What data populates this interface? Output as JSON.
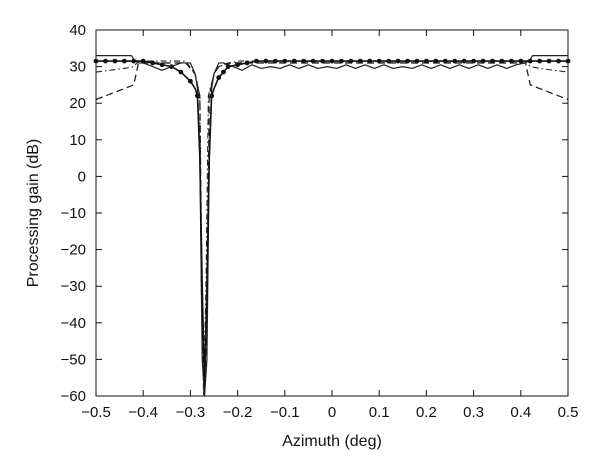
{
  "chart_data": {
    "type": "line",
    "title": "",
    "xlabel": "Azimuth (deg)",
    "ylabel": "Processing gain (dB)",
    "xlim": [
      -0.5,
      0.5
    ],
    "ylim": [
      -60,
      40
    ],
    "xticks": [
      -0.5,
      -0.4,
      -0.3,
      -0.2,
      -0.1,
      0,
      0.1,
      0.2,
      0.3,
      0.4,
      0.5
    ],
    "xtick_labels": [
      "−0.5",
      "−0.4",
      "−0.3",
      "−0.2",
      "−0.1",
      "0",
      "0.1",
      "0.2",
      "0.3",
      "0.4",
      "0.5"
    ],
    "yticks": [
      -60,
      -50,
      -40,
      -30,
      -20,
      -10,
      0,
      10,
      20,
      30,
      40
    ],
    "ytick_labels": [
      "−60",
      "−50",
      "−40",
      "−30",
      "−20",
      "−10",
      "0",
      "10",
      "20",
      "30",
      "40"
    ],
    "grid": false,
    "legend": "none",
    "series": [
      {
        "style": "solid-thin",
        "x": [
          -0.5,
          -0.425,
          -0.42,
          -0.41,
          -0.4,
          -0.38,
          -0.36,
          -0.34,
          -0.32,
          -0.3,
          -0.29,
          -0.285,
          -0.28,
          -0.275,
          -0.27,
          -0.265,
          -0.26,
          -0.255,
          -0.25,
          -0.24,
          -0.23,
          -0.21,
          -0.19,
          -0.17,
          -0.15,
          -0.13,
          -0.11,
          -0.09,
          -0.07,
          -0.05,
          -0.03,
          -0.01,
          0.01,
          0.03,
          0.05,
          0.07,
          0.09,
          0.11,
          0.13,
          0.15,
          0.17,
          0.19,
          0.21,
          0.23,
          0.25,
          0.27,
          0.29,
          0.31,
          0.33,
          0.35,
          0.37,
          0.39,
          0.41,
          0.42,
          0.425,
          0.5
        ],
        "y": [
          33,
          33,
          32,
          31,
          31,
          30,
          29,
          30,
          31,
          31,
          28,
          24,
          5,
          -50,
          -60,
          -50,
          5,
          24,
          28,
          31,
          31,
          30,
          29,
          30.5,
          29.5,
          30,
          29.5,
          30.5,
          29.5,
          30.5,
          29.5,
          30,
          29.5,
          30.5,
          29.5,
          30.5,
          29.5,
          30.5,
          29.5,
          30,
          29.5,
          30.5,
          29.5,
          30.5,
          29.5,
          30.5,
          29.5,
          30.5,
          29.5,
          30.5,
          29.5,
          30.5,
          31,
          32,
          33,
          33
        ]
      },
      {
        "style": "dashed",
        "x": [
          -0.5,
          -0.44,
          -0.42,
          -0.41,
          -0.39,
          -0.35,
          -0.31,
          -0.29,
          -0.28,
          -0.275,
          -0.27,
          -0.265,
          -0.26,
          -0.25,
          -0.24,
          -0.22,
          -0.2,
          -0.15,
          -0.1,
          0,
          0.1,
          0.2,
          0.3,
          0.39,
          0.41,
          0.42,
          0.44,
          0.5
        ],
        "y": [
          21,
          24,
          25,
          31,
          31,
          31,
          31,
          28,
          22,
          -40,
          -58,
          -40,
          22,
          28,
          30,
          31,
          31,
          31,
          31,
          31,
          31,
          31,
          31,
          31,
          31,
          25,
          24,
          21
        ]
      },
      {
        "style": "dash-dot",
        "x": [
          -0.5,
          -0.44,
          -0.42,
          -0.41,
          -0.39,
          -0.35,
          -0.31,
          -0.29,
          -0.28,
          -0.277,
          -0.272,
          -0.267,
          -0.262,
          -0.25,
          -0.24,
          -0.2,
          -0.1,
          0,
          0.1,
          0.2,
          0.3,
          0.39,
          0.41,
          0.42,
          0.44,
          0.5
        ],
        "y": [
          28.5,
          29.5,
          30,
          31.5,
          31.5,
          31.5,
          31.5,
          28,
          22,
          -30,
          -60,
          -30,
          22,
          28,
          30,
          31.5,
          31.5,
          31.5,
          31.5,
          31.5,
          31.5,
          31.5,
          31.5,
          30,
          29.5,
          28.5
        ]
      },
      {
        "style": "solid-with-dots",
        "x": [
          -0.5,
          -0.48,
          -0.46,
          -0.44,
          -0.42,
          -0.4,
          -0.38,
          -0.36,
          -0.34,
          -0.32,
          -0.3,
          -0.29,
          -0.285,
          -0.28,
          -0.275,
          -0.27,
          -0.265,
          -0.26,
          -0.255,
          -0.25,
          -0.24,
          -0.23,
          -0.22,
          -0.2,
          -0.18,
          -0.16,
          -0.14,
          -0.12,
          -0.1,
          -0.08,
          -0.06,
          -0.04,
          -0.02,
          0,
          0.02,
          0.04,
          0.06,
          0.08,
          0.1,
          0.12,
          0.14,
          0.16,
          0.18,
          0.2,
          0.22,
          0.24,
          0.26,
          0.28,
          0.3,
          0.32,
          0.34,
          0.36,
          0.38,
          0.4,
          0.42,
          0.44,
          0.46,
          0.48,
          0.5
        ],
        "y": [
          31.5,
          31.5,
          31.5,
          31.5,
          31.5,
          31.5,
          31,
          30.5,
          30,
          28.5,
          26,
          24,
          22,
          5,
          -30,
          -57,
          -30,
          5,
          22,
          24,
          27,
          28.5,
          30,
          30.5,
          31,
          31.5,
          31.5,
          31.5,
          31.5,
          31.5,
          31.5,
          31.5,
          31.5,
          31.5,
          31.5,
          31.5,
          31.5,
          31.5,
          31.5,
          31.5,
          31.5,
          31.5,
          31.5,
          31.5,
          31.5,
          31.5,
          31.5,
          31.5,
          31.5,
          31.5,
          31.5,
          31.5,
          31.5,
          31.5,
          31.5,
          31.5,
          31.5,
          31.5,
          31.5
        ],
        "markers_x": [
          -0.5,
          -0.48,
          -0.46,
          -0.44,
          -0.42,
          -0.4,
          -0.38,
          -0.36,
          -0.34,
          -0.32,
          -0.3,
          -0.285,
          -0.255,
          -0.24,
          -0.23,
          -0.22,
          -0.2,
          -0.18,
          -0.16,
          -0.14,
          -0.12,
          -0.1,
          -0.08,
          -0.06,
          -0.04,
          -0.02,
          0,
          0.02,
          0.04,
          0.06,
          0.08,
          0.1,
          0.12,
          0.14,
          0.16,
          0.18,
          0.2,
          0.22,
          0.24,
          0.26,
          0.28,
          0.3,
          0.32,
          0.34,
          0.36,
          0.38,
          0.4,
          0.42,
          0.44,
          0.46,
          0.48,
          0.5
        ]
      }
    ]
  }
}
